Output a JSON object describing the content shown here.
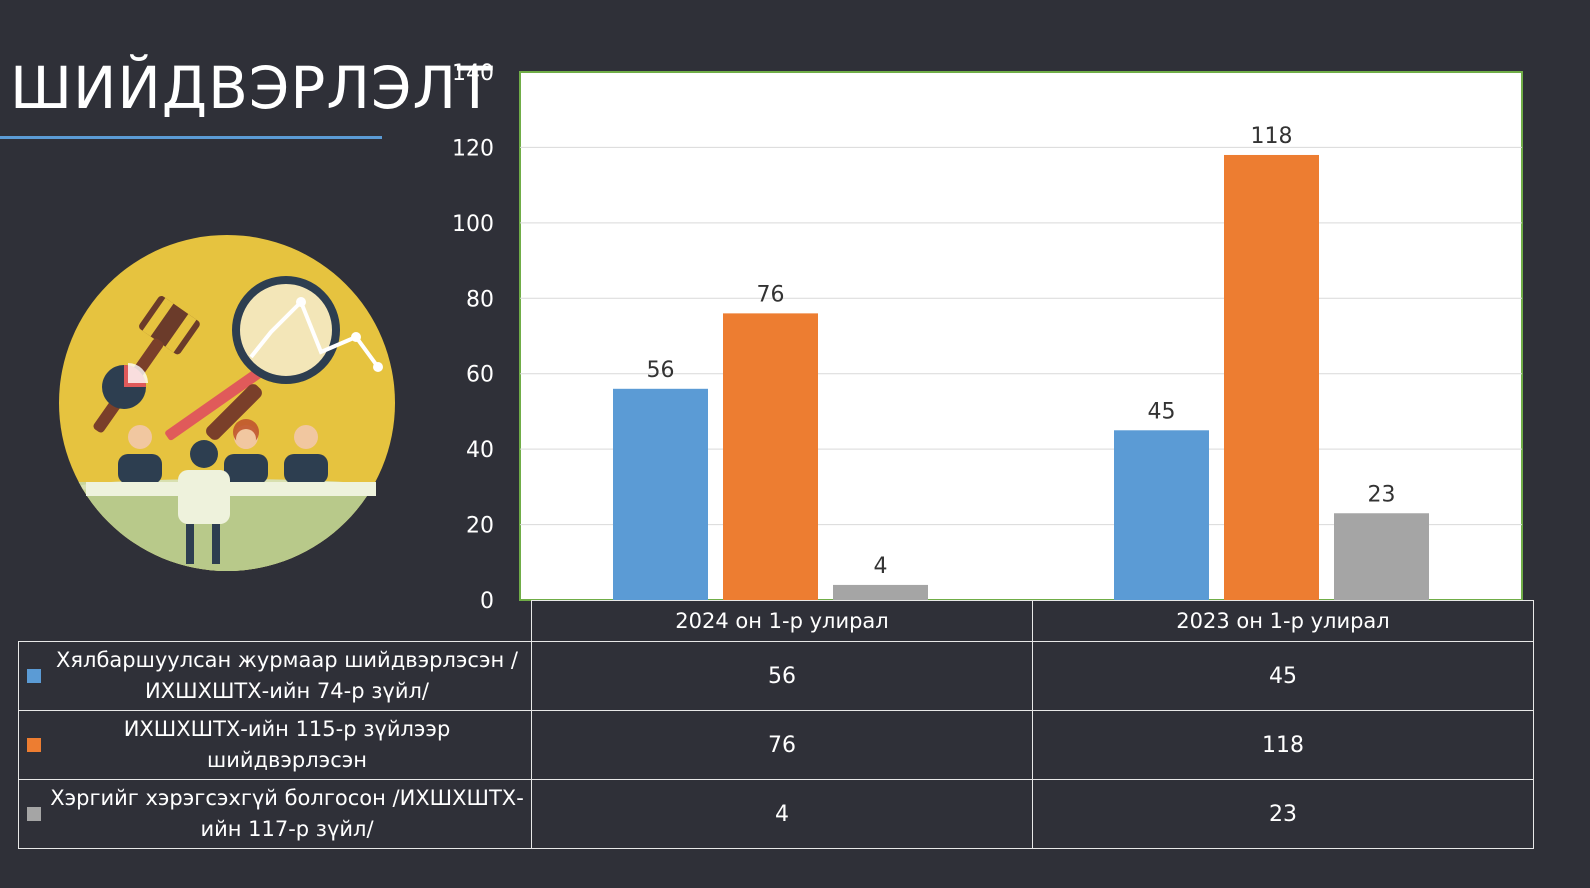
{
  "slide": {
    "title": "ШИЙДВЭРЛЭЛТ"
  },
  "illustration": {
    "icon": "court-hearing-illustration"
  },
  "chart_data": {
    "type": "bar",
    "categories": [
      "2024 он 1-р улирал",
      "2023 он 1-р улирал"
    ],
    "series": [
      {
        "name": "Хялбаршуулсан журмаар шийдвэрлэсэн /ИХШХШТХ-ийн 74-р зүйл/",
        "values": [
          56,
          45
        ],
        "color": "#5b9bd5"
      },
      {
        "name": "ИХШХШТХ-ийн 115-р зүйлээр шийдвэрлэсэн",
        "values": [
          76,
          118
        ],
        "color": "#ed7d31"
      },
      {
        "name": "Хэргийг хэрэгсэхгүй болгосон /ИХШХШТХ-ийн 117-р зүйл/",
        "values": [
          4,
          23
        ],
        "color": "#a5a5a5"
      }
    ],
    "ylim": [
      0,
      140
    ],
    "yticks": [
      0,
      20,
      40,
      60,
      80,
      100,
      120,
      140
    ],
    "grid": true,
    "data_table": true
  }
}
